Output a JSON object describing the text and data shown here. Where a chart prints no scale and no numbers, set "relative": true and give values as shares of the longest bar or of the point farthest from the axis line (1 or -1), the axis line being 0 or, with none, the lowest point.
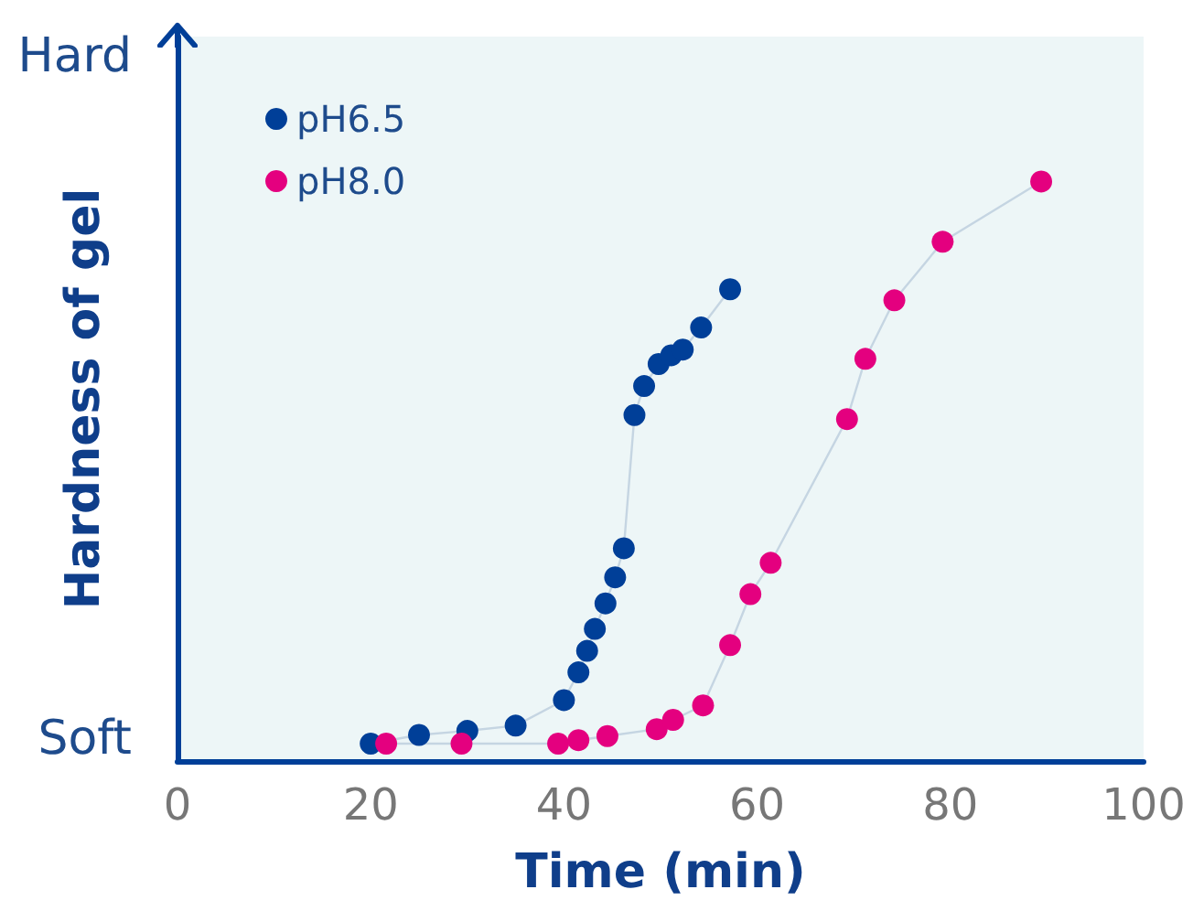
{
  "chart_data": {
    "type": "line",
    "xlabel": "Time (min)",
    "ylabel": "Hardness of gel",
    "relative": true,
    "annotations": [
      "Hard",
      "Soft"
    ],
    "xlim": [
      0,
      100
    ],
    "xticks": [
      0,
      20,
      40,
      60,
      80,
      100
    ],
    "grid": false,
    "legend": "top left",
    "marker": "circle",
    "line_style": "solid",
    "series": [
      {
        "name": "pH6.5",
        "color": "#003f98",
        "x": [
          20,
          25,
          30,
          35,
          40,
          41.5,
          42.4,
          43.2,
          44.3,
          45.3,
          46.2,
          47.3,
          48.3,
          49.8,
          51.1,
          52.3,
          54.2,
          57.2
        ],
        "values": [
          0.03,
          0.045,
          0.052,
          0.061,
          0.105,
          0.153,
          0.19,
          0.228,
          0.272,
          0.317,
          0.367,
          0.597,
          0.647,
          0.685,
          0.7,
          0.71,
          0.748,
          0.814
        ]
      },
      {
        "name": "pH8.0",
        "color": "#e4007f",
        "x": [
          21.6,
          29.4,
          39.4,
          41.5,
          44.5,
          49.6,
          51.3,
          54.4,
          57.2,
          59.3,
          61.4,
          69.3,
          71.2,
          74.2,
          79.2,
          89.4
        ],
        "values": [
          0.03,
          0.03,
          0.03,
          0.036,
          0.043,
          0.055,
          0.071,
          0.096,
          0.2,
          0.288,
          0.342,
          0.59,
          0.694,
          0.795,
          0.896,
          1
        ]
      }
    ]
  }
}
